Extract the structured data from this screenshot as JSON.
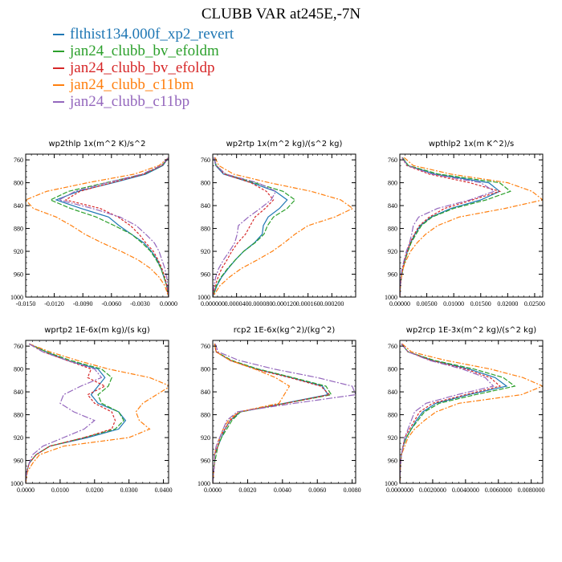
{
  "title": "CLUBB VAR at245E,-7N",
  "legend": [
    {
      "label": "flthist134.000f_xp2_revert",
      "color": "#1f77b4"
    },
    {
      "label": "jan24_clubb_bv_efoldm",
      "color": "#2ca02c"
    },
    {
      "label": "jan24_clubb_bv_efoldp",
      "color": "#d62728"
    },
    {
      "label": "jan24_clubb_c11bm",
      "color": "#ff7f0e"
    },
    {
      "label": "jan24_clubb_c11bp",
      "color": "#9467bd"
    }
  ],
  "chart_data": [
    {
      "type": "line",
      "title": "wp2thlp  1x(m^2 K)/s^2",
      "xlim": [
        -0.015,
        0.0
      ],
      "ylim": [
        1000,
        750
      ],
      "xticks": [
        -0.015,
        -0.012,
        -0.009,
        -0.006,
        -0.003,
        0.0
      ],
      "xtick_labels": [
        "-0.0150",
        "-0.0120",
        "-0.0090",
        "-0.0060",
        "-0.0030",
        "0.0000"
      ],
      "yticks": [
        760,
        800,
        840,
        880,
        920,
        960,
        1000
      ],
      "y": [
        756,
        770,
        785,
        800,
        815,
        830,
        845,
        860,
        875,
        890,
        905,
        920,
        935,
        950,
        965,
        980,
        1000
      ],
      "series": [
        {
          "values": [
            0,
            -0.0006,
            -0.0024,
            -0.0058,
            -0.0095,
            -0.0118,
            -0.0092,
            -0.0063,
            -0.0052,
            -0.0039,
            -0.0026,
            -0.0018,
            -0.0012,
            -0.0008,
            -0.0005,
            -0.0002,
            0
          ]
        },
        {
          "values": [
            0,
            -0.0007,
            -0.0026,
            -0.0066,
            -0.0105,
            -0.0124,
            -0.0103,
            -0.0076,
            -0.0057,
            -0.0039,
            -0.0028,
            -0.0019,
            -0.0013,
            -0.0008,
            -0.0005,
            -0.0002,
            0
          ]
        },
        {
          "values": [
            0,
            -0.0007,
            -0.0026,
            -0.006,
            -0.0093,
            -0.0108,
            -0.0072,
            -0.0053,
            -0.004,
            -0.0031,
            -0.0024,
            -0.0016,
            -0.0011,
            -0.0007,
            -0.0004,
            -0.0002,
            0
          ]
        },
        {
          "values": [
            0,
            -0.001,
            -0.0036,
            -0.0085,
            -0.0128,
            -0.015,
            -0.0142,
            -0.0118,
            -0.0102,
            -0.0088,
            -0.007,
            -0.005,
            -0.0032,
            -0.0019,
            -0.001,
            -0.0004,
            0
          ]
        },
        {
          "values": [
            0,
            -0.0008,
            -0.0028,
            -0.0065,
            -0.0098,
            -0.0115,
            -0.008,
            -0.0051,
            -0.0034,
            -0.0024,
            -0.0015,
            -0.001,
            -0.0007,
            -0.0004,
            -0.0002,
            -0.0001,
            0
          ]
        }
      ]
    },
    {
      "type": "line",
      "title": "wp2rtp  1x(m^2 kg)/(s^2 kg)",
      "xlim": [
        0.0,
        0.00024
      ],
      "ylim": [
        1000,
        750
      ],
      "xticks": [
        0.0,
        4e-05,
        8e-05,
        0.00012,
        0.00016,
        0.0002
      ],
      "xtick_labels": [
        "0.000000",
        "0.000040",
        "0.000080",
        "0.000120",
        "0.000160",
        "0.000200"
      ],
      "yticks": [
        760,
        800,
        840,
        880,
        920,
        960,
        1000
      ],
      "y": [
        756,
        770,
        785,
        800,
        815,
        830,
        845,
        860,
        875,
        890,
        905,
        920,
        935,
        950,
        965,
        980,
        1000
      ],
      "series": [
        {
          "values": [
            2e-06,
            5e-06,
            1.8e-05,
            6.5e-05,
            0.000105,
            0.000125,
            0.000112,
            9.3e-05,
            8.5e-05,
            8.3e-05,
            7e-05,
            5.2e-05,
            3.8e-05,
            2.6e-05,
            1.5e-05,
            7e-06,
            0
          ]
        },
        {
          "values": [
            2e-06,
            6e-06,
            2.2e-05,
            7e-05,
            0.000118,
            0.000138,
            0.000125,
            0.000102,
            9.2e-05,
            8.6e-05,
            7.1e-05,
            5.2e-05,
            3.8e-05,
            2.5e-05,
            1.4e-05,
            6e-06,
            0
          ]
        },
        {
          "values": [
            2e-06,
            6e-06,
            2e-05,
            6.4e-05,
            9e-05,
            0.000102,
            8.8e-05,
            7.1e-05,
            6.3e-05,
            5.5e-05,
            4.2e-05,
            3.2e-05,
            2.4e-05,
            1.5e-05,
            9e-06,
            4e-06,
            0
          ]
        },
        {
          "values": [
            4e-06,
            1e-05,
            3.5e-05,
            9.5e-05,
            0.000165,
            0.000215,
            0.000235,
            0.000205,
            0.00016,
            0.000138,
            0.00012,
            0.0001,
            7.5e-05,
            4.8e-05,
            2.8e-05,
            1.2e-05,
            0
          ]
        },
        {
          "values": [
            2e-06,
            6e-06,
            2.2e-05,
            7.5e-05,
            0.000106,
            9.8e-05,
            8e-05,
            6e-05,
            4.3e-05,
            4.1e-05,
            3.7e-05,
            2.8e-05,
            1.8e-05,
            1e-05,
            5e-06,
            2e-06,
            0
          ]
        }
      ]
    },
    {
      "type": "line",
      "title": "wpthlp2  1x(m K^2)/s",
      "xlim": [
        0.0,
        0.0265
      ],
      "ylim": [
        1000,
        750
      ],
      "xticks": [
        0.0,
        0.005,
        0.01,
        0.015,
        0.02,
        0.025
      ],
      "xtick_labels": [
        "0.00000",
        "0.00500",
        "0.01000",
        "0.01500",
        "0.02000",
        "0.02500"
      ],
      "yticks": [
        760,
        800,
        840,
        880,
        920,
        960,
        1000
      ],
      "y": [
        756,
        770,
        785,
        800,
        815,
        830,
        845,
        860,
        875,
        890,
        905,
        920,
        935,
        950,
        965,
        980,
        1000
      ],
      "series": [
        {
          "values": [
            0.0005,
            0.0015,
            0.0065,
            0.0165,
            0.0185,
            0.015,
            0.0095,
            0.0058,
            0.0038,
            0.0028,
            0.002,
            0.0014,
            0.001,
            0.0006,
            0.0003,
            0.0001,
            0
          ]
        },
        {
          "values": [
            0.0005,
            0.0016,
            0.0072,
            0.0185,
            0.0205,
            0.016,
            0.01,
            0.006,
            0.004,
            0.003,
            0.0021,
            0.0015,
            0.001,
            0.0006,
            0.0003,
            0.0001,
            0
          ]
        },
        {
          "values": [
            0.0004,
            0.0013,
            0.0055,
            0.013,
            0.0185,
            0.0135,
            0.0083,
            0.0055,
            0.0036,
            0.0027,
            0.0019,
            0.0014,
            0.0009,
            0.0005,
            0.0003,
            0.0001,
            0
          ]
        },
        {
          "values": [
            0.0008,
            0.0025,
            0.0095,
            0.02,
            0.0245,
            0.0265,
            0.0195,
            0.011,
            0.007,
            0.0048,
            0.0032,
            0.002,
            0.0012,
            0.0006,
            0.0003,
            0.0001,
            0
          ]
        },
        {
          "values": [
            0.0004,
            0.0014,
            0.006,
            0.015,
            0.0175,
            0.013,
            0.007,
            0.0035,
            0.0025,
            0.0022,
            0.0018,
            0.0012,
            0.0008,
            0.0004,
            0.0002,
            0.0001,
            0
          ]
        }
      ]
    },
    {
      "type": "line",
      "title": "wprtp2  1E-6x(m kg)/(s kg)",
      "xlim": [
        0.0,
        0.0415
      ],
      "ylim": [
        1000,
        750
      ],
      "xticks": [
        0.0,
        0.01,
        0.02,
        0.03,
        0.04
      ],
      "xtick_labels": [
        "0.0000",
        "0.0100",
        "0.0200",
        "0.0300",
        "0.0400"
      ],
      "yticks": [
        760,
        800,
        840,
        880,
        920,
        960,
        1000
      ],
      "y": [
        756,
        770,
        785,
        800,
        815,
        830,
        845,
        860,
        875,
        890,
        905,
        920,
        935,
        950,
        965,
        980,
        1000
      ],
      "series": [
        {
          "values": [
            0.001,
            0.006,
            0.012,
            0.021,
            0.023,
            0.021,
            0.019,
            0.021,
            0.027,
            0.029,
            0.027,
            0.018,
            0.007,
            0.003,
            0.001,
            0.0003,
            0
          ]
        },
        {
          "values": [
            0.001,
            0.006,
            0.013,
            0.022,
            0.025,
            0.024,
            0.021,
            0.022,
            0.027,
            0.0285,
            0.026,
            0.017,
            0.007,
            0.003,
            0.001,
            0.0003,
            0
          ]
        },
        {
          "values": [
            0.001,
            0.005,
            0.012,
            0.019,
            0.018,
            0.023,
            0.018,
            0.02,
            0.025,
            0.026,
            0.025,
            0.017,
            0.007,
            0.003,
            0.001,
            0.0003,
            0
          ]
        },
        {
          "values": [
            0.001,
            0.007,
            0.015,
            0.024,
            0.036,
            0.042,
            0.038,
            0.034,
            0.032,
            0.033,
            0.036,
            0.03,
            0.011,
            0.004,
            0.002,
            0.0005,
            0
          ]
        },
        {
          "values": [
            0.001,
            0.005,
            0.012,
            0.02,
            0.022,
            0.016,
            0.011,
            0.01,
            0.014,
            0.02,
            0.017,
            0.011,
            0.005,
            0.002,
            0.001,
            0.0003,
            0
          ]
        }
      ]
    },
    {
      "type": "line",
      "title": "rcp2  1E-6x(kg^2)/(kg^2)",
      "xlim": [
        0.0,
        0.0082
      ],
      "ylim": [
        1000,
        750
      ],
      "xticks": [
        0.0,
        0.002,
        0.004,
        0.006,
        0.008
      ],
      "xtick_labels": [
        "0.0000",
        "0.0020",
        "0.0040",
        "0.0060",
        "0.0080"
      ],
      "yticks": [
        760,
        800,
        840,
        880,
        920,
        960,
        1000
      ],
      "y": [
        756,
        770,
        785,
        800,
        815,
        830,
        845,
        860,
        875,
        890,
        905,
        920,
        935,
        950,
        965,
        980,
        1000
      ],
      "series": [
        {
          "values": [
            0.0001,
            0.0002,
            0.001,
            0.0025,
            0.0045,
            0.0063,
            0.0066,
            0.0041,
            0.0016,
            0.001,
            0.0007,
            0.0005,
            0.0003,
            0.0001,
            0.0001,
            5e-05,
            0
          ]
        },
        {
          "values": [
            0.0001,
            0.0002,
            0.0011,
            0.0026,
            0.0046,
            0.0065,
            0.0068,
            0.0042,
            0.0016,
            0.0011,
            0.0008,
            0.0005,
            0.0003,
            0.0002,
            0.0001,
            5e-05,
            0
          ]
        },
        {
          "values": [
            0.0001,
            0.0002,
            0.001,
            0.0024,
            0.0044,
            0.0062,
            0.0067,
            0.0042,
            0.0015,
            0.001,
            0.0007,
            0.0004,
            0.0003,
            0.0001,
            0.0001,
            5e-05,
            0
          ]
        },
        {
          "values": [
            0.0001,
            0.0002,
            0.001,
            0.0024,
            0.0036,
            0.0044,
            0.0041,
            0.0038,
            0.0015,
            0.0009,
            0.0006,
            0.0004,
            0.0002,
            0.0001,
            0.0001,
            5e-05,
            0
          ]
        },
        {
          "values": [
            0.00015,
            0.0003,
            0.0015,
            0.0035,
            0.006,
            0.008,
            0.0082,
            0.0047,
            0.0014,
            0.0008,
            0.0006,
            0.0004,
            0.0002,
            0.0001,
            0.0001,
            5e-05,
            0
          ]
        }
      ]
    },
    {
      "type": "line",
      "title": "wp2rcp  1E-3x(m^2 kg)/(s^2 kg)",
      "xlim": [
        0.0,
        0.0087
      ],
      "ylim": [
        1000,
        750
      ],
      "xticks": [
        0.0,
        0.002,
        0.004,
        0.006,
        0.008
      ],
      "xtick_labels": [
        "0.0000000",
        "0.0020000",
        "0.0040000",
        "0.0060000",
        "0.0080000"
      ],
      "yticks": [
        760,
        800,
        840,
        880,
        920,
        960,
        1000
      ],
      "y": [
        756,
        770,
        785,
        800,
        815,
        830,
        845,
        860,
        875,
        890,
        905,
        920,
        935,
        950,
        965,
        980,
        1000
      ],
      "series": [
        {
          "values": [
            0.0001,
            0.0005,
            0.002,
            0.0042,
            0.0058,
            0.0065,
            0.0042,
            0.0022,
            0.0014,
            0.001,
            0.0007,
            0.0004,
            0.0002,
            0.0001,
            5e-05,
            2e-05,
            0
          ]
        },
        {
          "values": [
            0.0001,
            0.0005,
            0.0021,
            0.0045,
            0.0063,
            0.007,
            0.0046,
            0.0024,
            0.0015,
            0.0011,
            0.0007,
            0.0004,
            0.0002,
            0.0001,
            5e-05,
            2e-05,
            0
          ]
        },
        {
          "values": [
            0.0001,
            0.0005,
            0.0019,
            0.004,
            0.0055,
            0.0061,
            0.004,
            0.002,
            0.0012,
            0.0009,
            0.0006,
            0.0003,
            0.0002,
            0.0001,
            5e-05,
            2e-05,
            0
          ]
        },
        {
          "values": [
            0.00015,
            0.0007,
            0.0028,
            0.0055,
            0.0075,
            0.0087,
            0.0074,
            0.0036,
            0.0022,
            0.0015,
            0.0009,
            0.0005,
            0.0003,
            0.0001,
            5e-05,
            2e-05,
            0
          ]
        },
        {
          "values": [
            0.0001,
            0.0005,
            0.0018,
            0.0038,
            0.0052,
            0.0057,
            0.0035,
            0.0016,
            0.0009,
            0.0007,
            0.0005,
            0.0003,
            0.0002,
            0.0001,
            5e-05,
            2e-05,
            0
          ]
        }
      ]
    }
  ]
}
